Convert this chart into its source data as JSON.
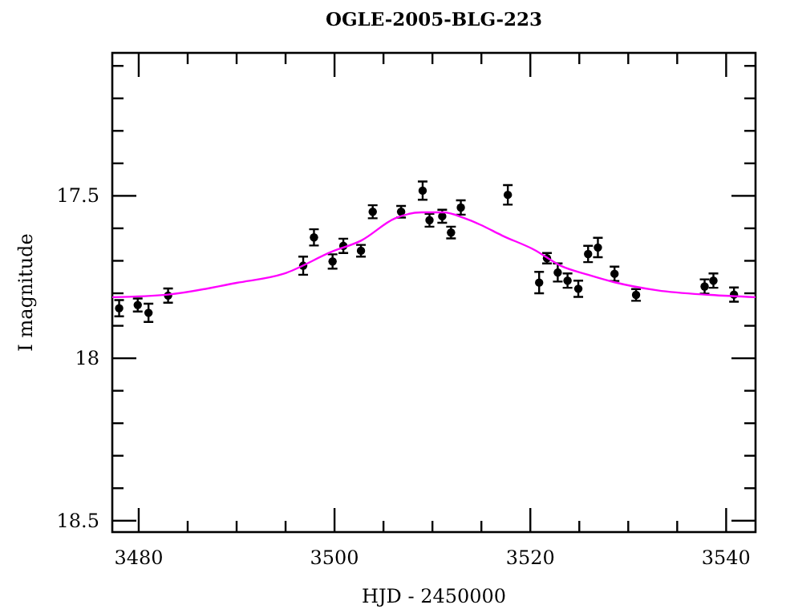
{
  "chart_data": {
    "type": "scatter",
    "title": "OGLE-2005-BLG-223",
    "xlabel": "HJD - 2450000",
    "ylabel": "I magnitude",
    "xlim": [
      3477.3,
      3543
    ],
    "ylim": [
      18.535,
      17.06
    ],
    "xticks": [
      3480,
      {
        "value": 3485,
        "label": null
      },
      {
        "value": 3490,
        "label": null
      },
      {
        "value": 3495,
        "label": null
      },
      3500,
      {
        "value": 3505,
        "label": null
      },
      {
        "value": 3510,
        "label": null
      },
      {
        "value": 3515,
        "label": null
      },
      3520,
      {
        "value": 3525,
        "label": null
      },
      {
        "value": 3530,
        "label": null
      },
      {
        "value": 3535,
        "label": null
      },
      3540
    ],
    "yticks": [
      {
        "value": 17.1,
        "label": null
      },
      {
        "value": 17.2,
        "label": null
      },
      {
        "value": 17.3,
        "label": null
      },
      {
        "value": 17.4,
        "label": null
      },
      17.5,
      {
        "value": 17.6,
        "label": null
      },
      {
        "value": 17.7,
        "label": null
      },
      {
        "value": 17.8,
        "label": null
      },
      {
        "value": 17.9,
        "label": null
      },
      18,
      {
        "value": 18.1,
        "label": null
      },
      {
        "value": 18.2,
        "label": null
      },
      {
        "value": 18.3,
        "label": null
      },
      {
        "value": 18.4,
        "label": null
      },
      18.5
    ],
    "grid": false,
    "marker": "circle",
    "series": [
      {
        "color": "#000000",
        "x": [
          3478.0,
          3479.9,
          3481.0,
          3483.0,
          3496.8,
          3497.9,
          3499.8,
          3500.9,
          3502.7,
          3503.9,
          3506.8,
          3509.0,
          3509.7,
          3511.0,
          3511.9,
          3512.9,
          3517.7,
          3520.9,
          3521.7,
          3522.8,
          3523.8,
          3524.9,
          3525.9,
          3526.9,
          3528.6,
          3530.8,
          3537.8,
          3538.7,
          3540.8
        ],
        "values": [
          17.846,
          17.836,
          17.86,
          17.807,
          17.715,
          17.628,
          17.702,
          17.654,
          17.669,
          17.549,
          17.549,
          17.484,
          17.575,
          17.563,
          17.613,
          17.536,
          17.497,
          17.767,
          17.692,
          17.736,
          17.761,
          17.786,
          17.679,
          17.659,
          17.74,
          17.805,
          17.779,
          17.761,
          17.804
        ],
        "errors": [
          0.025,
          0.02,
          0.028,
          0.022,
          0.028,
          0.025,
          0.022,
          0.022,
          0.018,
          0.02,
          0.018,
          0.028,
          0.02,
          0.02,
          0.018,
          0.022,
          0.03,
          0.033,
          0.016,
          0.028,
          0.022,
          0.025,
          0.025,
          0.03,
          0.022,
          0.018,
          0.022,
          0.022,
          0.022
        ]
      },
      {
        "type": "line",
        "color": "#ff00ff",
        "marker": "none",
        "x": [
          3477.3,
          3483,
          3490,
          3494.8,
          3499.8,
          3502.7,
          3506.2,
          3508.9,
          3511.1,
          3513.3,
          3514.9,
          3517.1,
          3520.4,
          3523.1,
          3525.9,
          3528.6,
          3533,
          3538.4,
          3543
        ],
        "values": [
          17.812,
          17.804,
          17.768,
          17.74,
          17.671,
          17.638,
          17.569,
          17.551,
          17.551,
          17.569,
          17.589,
          17.622,
          17.666,
          17.715,
          17.743,
          17.766,
          17.791,
          17.805,
          17.812
        ]
      }
    ]
  }
}
